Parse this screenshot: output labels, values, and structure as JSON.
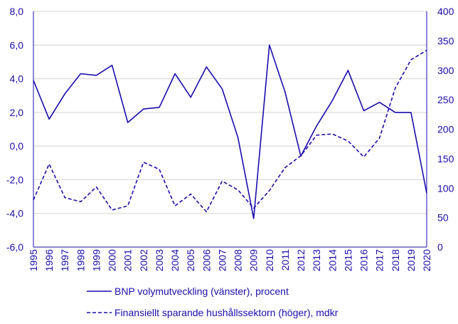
{
  "chart_data": {
    "type": "line",
    "colors": {
      "series": "#1a0dab",
      "grid": "#d4d4d4",
      "axis": "#1a0dab"
    },
    "grid": true,
    "legend_position": "bottom",
    "x": [
      "1995",
      "1996",
      "1997",
      "1998",
      "1999",
      "2000",
      "2001",
      "2002",
      "2003",
      "2004",
      "2005",
      "2006",
      "2007",
      "2008",
      "2009",
      "2010",
      "2011",
      "2012",
      "2013",
      "2014",
      "2015",
      "2016",
      "2017",
      "2018",
      "2019",
      "2020"
    ],
    "left_axis": {
      "ylim": [
        -6,
        8
      ],
      "ticks": [
        -6,
        -4,
        -2,
        0,
        2,
        4,
        6,
        8
      ],
      "tick_labels": [
        "-6,0",
        "-4,0",
        "-2,0",
        "0,0",
        "2,0",
        "4,0",
        "6,0",
        "8,0"
      ]
    },
    "right_axis": {
      "ylim": [
        0,
        400
      ],
      "ticks": [
        0,
        50,
        100,
        150,
        200,
        250,
        300,
        350,
        400
      ],
      "tick_labels": [
        "0",
        "50",
        "100",
        "150",
        "200",
        "250",
        "300",
        "350",
        "400"
      ]
    },
    "series": [
      {
        "name": "BNP volymutveckling (vänster), procent",
        "axis": "left",
        "style": "solid",
        "values": [
          3.9,
          1.6,
          3.1,
          4.3,
          4.2,
          4.8,
          1.4,
          2.2,
          2.3,
          4.3,
          2.9,
          4.7,
          3.4,
          0.5,
          -4.3,
          6.0,
          3.2,
          -0.6,
          1.2,
          2.7,
          4.5,
          2.1,
          2.6,
          2.0,
          2.0,
          -2.8
        ]
      },
      {
        "name": "Finansiellt sparande hushållssektorn (höger), mdkr",
        "axis": "right",
        "style": "dashed",
        "values": [
          80,
          141,
          84,
          77,
          102,
          63,
          70,
          144,
          132,
          70,
          90,
          60,
          112,
          97,
          66,
          96,
          135,
          155,
          190,
          192,
          180,
          153,
          185,
          270,
          318,
          334
        ]
      }
    ]
  }
}
